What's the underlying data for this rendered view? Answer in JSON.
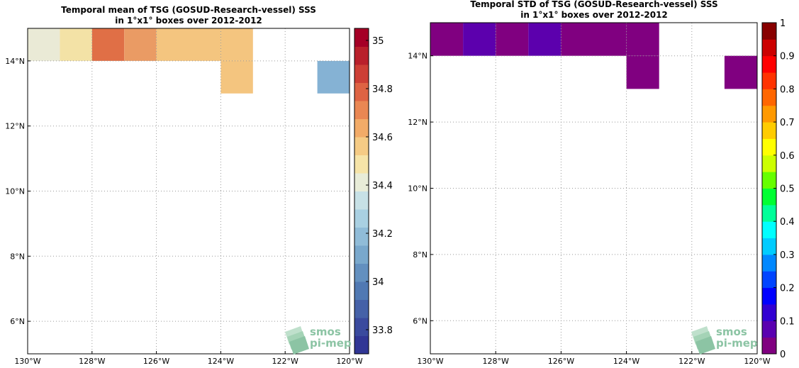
{
  "panels": [
    {
      "id": "mean",
      "title_line1": "Temporal mean of TSG (GOSUD-Research-vessel) SSS",
      "title_line2": "in 1°x1° boxes over 2012-2012",
      "lon_range": [
        -130,
        -120
      ],
      "lat_range": [
        5,
        15
      ],
      "x_ticks": [
        "130°W",
        "128°W",
        "126°W",
        "124°W",
        "122°W",
        "120°W"
      ],
      "x_tick_values": [
        -130,
        -128,
        -126,
        -124,
        -122,
        -120
      ],
      "y_ticks": [
        "6°N",
        "8°N",
        "10°N",
        "12°N",
        "14°N"
      ],
      "y_tick_values": [
        6,
        8,
        10,
        12,
        14
      ],
      "colorbar": {
        "min": 33.7,
        "max": 35.05,
        "colors": [
          "#313695",
          "#3a4a9e",
          "#4561a8",
          "#5079b3",
          "#6390bf",
          "#79a8cc",
          "#90bcd8",
          "#a9d0e2",
          "#c7e1e6",
          "#e8ecd8",
          "#f6e4a8",
          "#f5cb85",
          "#f2ab68",
          "#ea8753",
          "#de6343",
          "#cd3f35",
          "#b9202b",
          "#a50026"
        ],
        "tick_labels": [
          "33.8",
          "34",
          "34.2",
          "34.4",
          "34.6",
          "34.8",
          "35"
        ],
        "tick_values": [
          33.8,
          34.0,
          34.2,
          34.4,
          34.6,
          34.8,
          35.0
        ]
      },
      "cells": [
        {
          "lon": -130,
          "lat": 14,
          "color": "#eaead6"
        },
        {
          "lon": -129,
          "lat": 14,
          "color": "#f3e2a6"
        },
        {
          "lon": -128,
          "lat": 14,
          "color": "#e06f46"
        },
        {
          "lon": -127,
          "lat": 14,
          "color": "#ea9b64"
        },
        {
          "lon": -126,
          "lat": 14,
          "color": "#f4c57f"
        },
        {
          "lon": -125,
          "lat": 14,
          "color": "#f4c57f"
        },
        {
          "lon": -124,
          "lat": 14,
          "color": "#f4c57f"
        },
        {
          "lon": -124,
          "lat": 13,
          "color": "#f4c57f"
        },
        {
          "lon": -121,
          "lat": 13,
          "color": "#85b2d4"
        }
      ]
    },
    {
      "id": "std",
      "title_line1": "Temporal STD of TSG (GOSUD-Research-vessel) SSS",
      "title_line2": "in 1°x1° boxes over 2012-2012",
      "lon_range": [
        -130,
        -120
      ],
      "lat_range": [
        5,
        15
      ],
      "x_ticks": [
        "130°W",
        "128°W",
        "126°W",
        "124°W",
        "122°W",
        "120°W"
      ],
      "x_tick_values": [
        -130,
        -128,
        -126,
        -124,
        -122,
        -120
      ],
      "y_ticks": [
        "6°N",
        "8°N",
        "10°N",
        "12°N",
        "14°N"
      ],
      "y_tick_values": [
        6,
        8,
        10,
        12,
        14
      ],
      "colorbar": {
        "min": 0,
        "max": 1,
        "colors": [
          "#800080",
          "#5a00b0",
          "#3200d2",
          "#0000ff",
          "#0044ff",
          "#0088ff",
          "#00ccff",
          "#00ffff",
          "#00ff99",
          "#00ff33",
          "#66ff00",
          "#ccff00",
          "#ffff00",
          "#ffcc00",
          "#ff9900",
          "#ff6600",
          "#ff3300",
          "#ff0000",
          "#cc0000",
          "#880000"
        ],
        "tick_labels": [
          "0",
          "0.1",
          "0.2",
          "0.3",
          "0.4",
          "0.5",
          "0.6",
          "0.7",
          "0.8",
          "0.9",
          "1"
        ],
        "tick_values": [
          0,
          0.1,
          0.2,
          0.3,
          0.4,
          0.5,
          0.6,
          0.7,
          0.8,
          0.9,
          1.0
        ]
      },
      "cells": [
        {
          "lon": -130,
          "lat": 14,
          "color": "#800080"
        },
        {
          "lon": -129,
          "lat": 14,
          "color": "#5c00ad"
        },
        {
          "lon": -128,
          "lat": 14,
          "color": "#800080"
        },
        {
          "lon": -127,
          "lat": 14,
          "color": "#5c00ad"
        },
        {
          "lon": -126,
          "lat": 14,
          "color": "#800080"
        },
        {
          "lon": -125,
          "lat": 14,
          "color": "#800080"
        },
        {
          "lon": -124,
          "lat": 14,
          "color": "#800080"
        },
        {
          "lon": -124,
          "lat": 13,
          "color": "#800080"
        },
        {
          "lon": -121,
          "lat": 13,
          "color": "#800080"
        }
      ]
    }
  ],
  "logo": {
    "line1": "smos",
    "line2": "pi-mep",
    "icon": "smos-pimep-logo-icon"
  }
}
